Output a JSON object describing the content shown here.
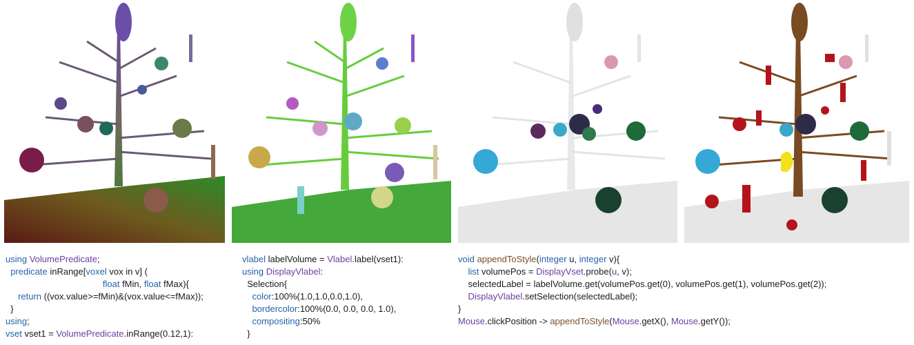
{
  "panels": [
    {
      "name": "panel-raw-volume",
      "style": "gradient"
    },
    {
      "name": "panel-labeled-volume",
      "style": "labels"
    },
    {
      "name": "panel-selection-gray",
      "style": "gray"
    },
    {
      "name": "panel-selection-highlight",
      "style": "highlight"
    }
  ],
  "colors": {
    "keyword": "#2563ab",
    "type": "#6a3fa0",
    "function": "#7a5230",
    "text": "#1a1a1a",
    "highlight_red": "#b3141c",
    "highlight_yellow": "#f2e21b",
    "trunk_brown": "#7a4a22"
  },
  "code1": [
    [
      {
        "t": "using ",
        "c": "kw"
      },
      {
        "t": "VolumePredicate",
        "c": "ty"
      },
      {
        "t": ";"
      }
    ],
    [
      {
        "t": "  "
      },
      {
        "t": "predicate",
        "c": "kw"
      },
      {
        "t": " inRange["
      },
      {
        "t": "voxel",
        "c": "kw"
      },
      {
        "t": " vox in v] ("
      }
    ],
    [
      {
        "t": "                                       "
      },
      {
        "t": "float",
        "c": "kw"
      },
      {
        "t": " fMin, "
      },
      {
        "t": "float",
        "c": "kw"
      },
      {
        "t": " fMax){"
      }
    ],
    [
      {
        "t": "     "
      },
      {
        "t": "return",
        "c": "kw"
      },
      {
        "t": " ((vox.value>=fMin)&(vox.value<=fMax));"
      }
    ],
    [
      {
        "t": "  }"
      }
    ],
    [
      {
        "t": "using",
        "c": "kw"
      },
      {
        "t": ";"
      }
    ],
    [
      {
        "t": "vset",
        "c": "kw"
      },
      {
        "t": " vset1 = "
      },
      {
        "t": "VolumePredicate",
        "c": "ty"
      },
      {
        "t": ".inRange(0.12,1):"
      }
    ]
  ],
  "code2": [
    [
      {
        "t": "vlabel",
        "c": "kw"
      },
      {
        "t": " labelVolume = "
      },
      {
        "t": "Vlabel",
        "c": "ty"
      },
      {
        "t": ".label(vset1):"
      }
    ],
    [
      {
        "t": "using ",
        "c": "kw"
      },
      {
        "t": "DisplayVlabel",
        "c": "ty"
      },
      {
        "t": ":"
      }
    ],
    [
      {
        "t": "  Selection{"
      }
    ],
    [
      {
        "t": "    "
      },
      {
        "t": "color",
        "c": "kw"
      },
      {
        "t": ":100%(1.0,1.0,0.0,1.0),"
      }
    ],
    [
      {
        "t": "    "
      },
      {
        "t": "bordercolor",
        "c": "kw"
      },
      {
        "t": ":100%(0.0, 0.0, 0.0, 1.0),"
      }
    ],
    [
      {
        "t": "    "
      },
      {
        "t": "compositing",
        "c": "kw"
      },
      {
        "t": ":50%"
      }
    ],
    [
      {
        "t": "  }"
      }
    ]
  ],
  "code3": [
    [
      {
        "t": "void",
        "c": "kw"
      },
      {
        "t": " "
      },
      {
        "t": "appendToStyle",
        "c": "fn"
      },
      {
        "t": "("
      },
      {
        "t": "integer",
        "c": "kw"
      },
      {
        "t": " u, "
      },
      {
        "t": "integer",
        "c": "kw"
      },
      {
        "t": " v){"
      }
    ],
    [
      {
        "t": "    "
      },
      {
        "t": "list",
        "c": "kw"
      },
      {
        "t": " volumePos = "
      },
      {
        "t": "DisplayVset",
        "c": "ty"
      },
      {
        "t": ".probe("
      },
      {
        "t": "u",
        "c": "ty"
      },
      {
        "t": ", v);"
      }
    ],
    [
      {
        "t": "    selectedLabel = labelVolume.get(volumePos.get(0), volumePos.get(1), volumePos.get(2));"
      }
    ],
    [
      {
        "t": "    "
      },
      {
        "t": "DisplayVlabel",
        "c": "ty"
      },
      {
        "t": ".setSelection(selectedLabel);"
      }
    ],
    [
      {
        "t": "}"
      }
    ],
    [
      {
        "t": "Mouse",
        "c": "ty"
      },
      {
        "t": ".clickPosition -> "
      },
      {
        "t": "appendToStyle",
        "c": "fn"
      },
      {
        "t": "("
      },
      {
        "t": "Mouse",
        "c": "ty"
      },
      {
        "t": ".getX(), "
      },
      {
        "t": "Mouse",
        "c": "ty"
      },
      {
        "t": ".getY());"
      }
    ]
  ]
}
